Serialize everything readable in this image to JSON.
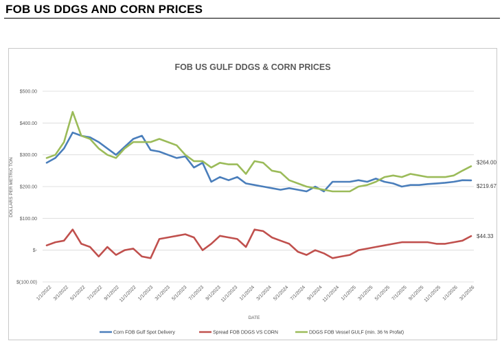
{
  "page": {
    "heading": "FOB US DDGS AND CORN PRICES"
  },
  "chart_data": {
    "type": "line",
    "title": "FOB US GULF DDGS & CORN PRICES",
    "xlabel": "DATE",
    "ylabel": "DOLLARS PER METRIC TON",
    "ylim": [
      -100,
      500
    ],
    "y_ticks": [
      -100,
      0,
      100,
      200,
      300,
      400,
      500
    ],
    "y_tick_labels": [
      "$(100.00)",
      "$-",
      "$100.00",
      "$200.00",
      "$300.00",
      "$400.00",
      "$500.00"
    ],
    "x_tick_labels": [
      "1/1/2022",
      "3/1/2022",
      "5/1/2022",
      "7/1/2022",
      "9/1/2022",
      "11/1/2022",
      "1/1/2023",
      "3/1/2023",
      "5/1/2023",
      "7/1/2023",
      "9/1/2023",
      "11/1/2023",
      "1/1/2024",
      "3/1/2024",
      "5/1/2024",
      "7/1/2024",
      "9/1/2024",
      "11/1/2024",
      "1/1/2025",
      "3/1/2025",
      "5/1/2025",
      "7/1/2025",
      "9/1/2025",
      "11/1/2025",
      "1/1/2026",
      "3/1/2026"
    ],
    "grid": true,
    "legend_position": "bottom",
    "series": [
      {
        "name": "Corn FOB Gulf Spot Delivery",
        "color": "#4a7ebb",
        "end_label": "$219.67",
        "values": [
          275,
          290,
          320,
          370,
          360,
          355,
          340,
          320,
          300,
          325,
          350,
          360,
          315,
          310,
          300,
          290,
          295,
          260,
          275,
          215,
          230,
          220,
          230,
          210,
          205,
          200,
          195,
          190,
          195,
          190,
          185,
          200,
          185,
          215,
          215,
          215,
          220,
          215,
          225,
          215,
          210,
          200,
          205,
          205,
          208,
          210,
          212,
          215,
          220,
          219.67
        ]
      },
      {
        "name": "Spread FOB DDGS VS CORN",
        "color": "#c0504d",
        "end_label": "$44.33",
        "values": [
          15,
          25,
          30,
          65,
          20,
          10,
          -20,
          10,
          -15,
          0,
          5,
          -20,
          -25,
          35,
          40,
          45,
          50,
          40,
          0,
          20,
          45,
          40,
          35,
          10,
          65,
          60,
          40,
          30,
          20,
          -5,
          -15,
          0,
          -10,
          -25,
          -20,
          -15,
          0,
          5,
          10,
          15,
          20,
          25,
          25,
          25,
          25,
          20,
          20,
          25,
          30,
          44.33
        ]
      },
      {
        "name": "DDGS FOB Vessel GULF  (min. 36 % Profat)",
        "color": "#9bbb59",
        "end_label": "$264.00",
        "values": [
          290,
          300,
          340,
          435,
          360,
          350,
          320,
          300,
          290,
          320,
          340,
          340,
          340,
          350,
          340,
          330,
          300,
          280,
          280,
          260,
          275,
          270,
          270,
          240,
          280,
          275,
          250,
          245,
          220,
          210,
          200,
          195,
          190,
          185,
          185,
          185,
          200,
          205,
          215,
          230,
          235,
          230,
          240,
          235,
          230,
          230,
          230,
          235,
          250,
          264
        ]
      }
    ]
  }
}
